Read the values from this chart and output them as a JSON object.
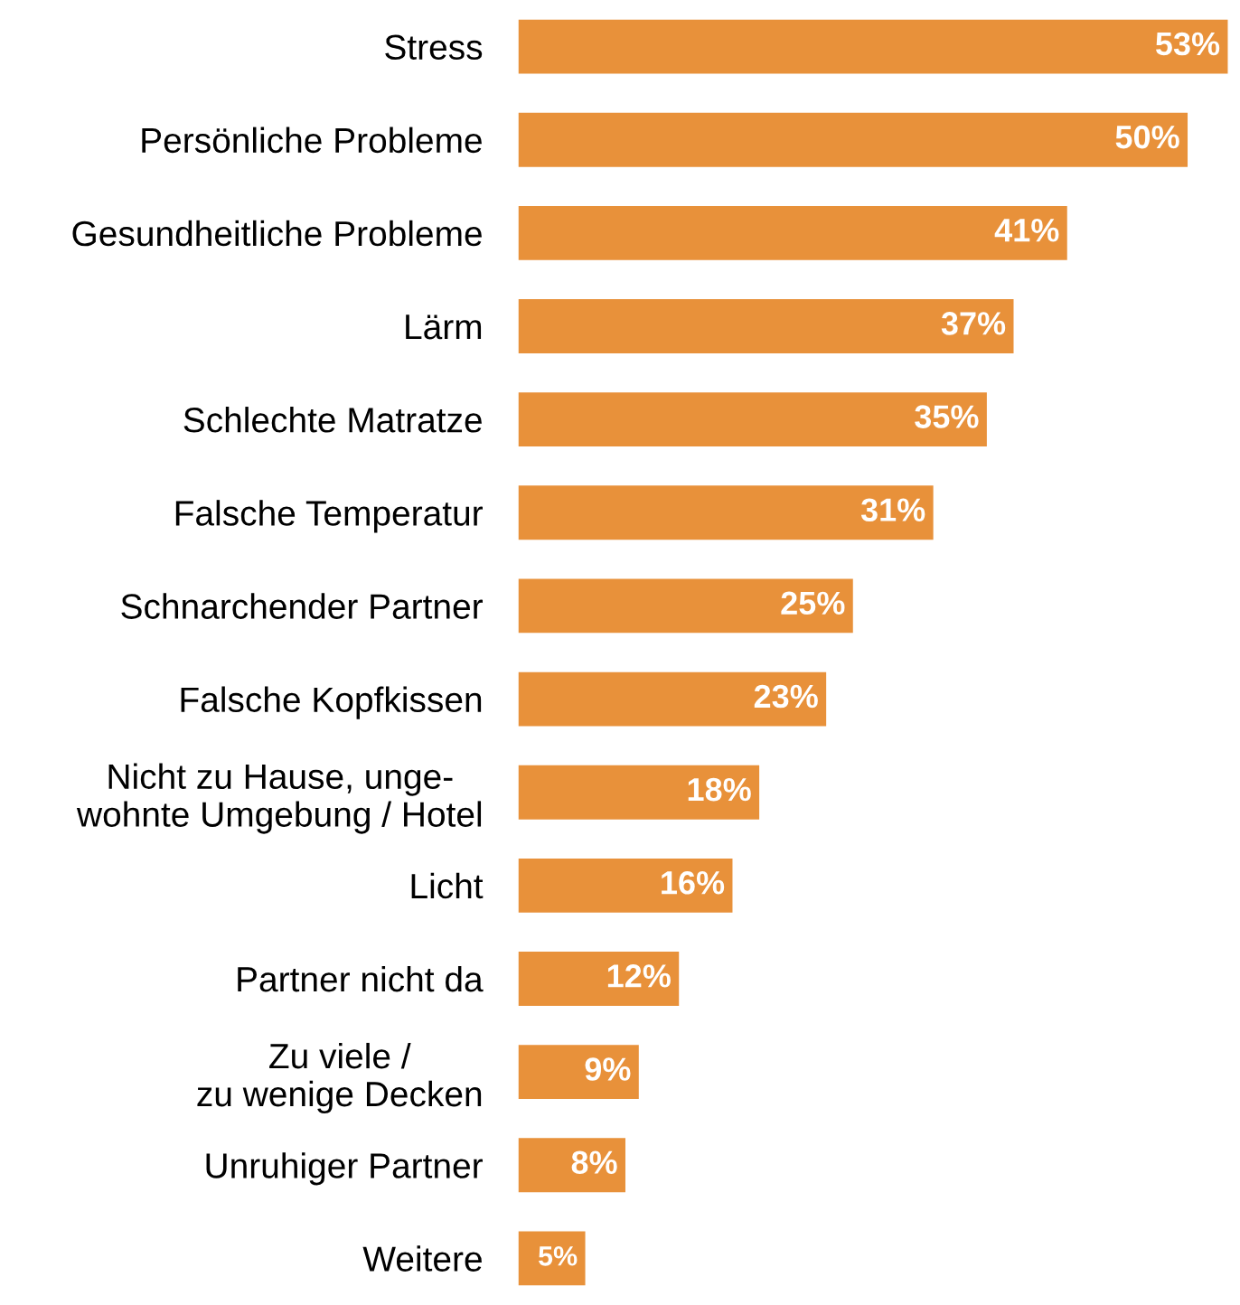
{
  "chart_data": {
    "type": "bar",
    "orientation": "horizontal",
    "categories": [
      "Stress",
      "Persönliche Probleme",
      "Gesundheitliche Probleme",
      "Lärm",
      "Schlechte Matratze",
      "Falsche Temperatur",
      "Schnarchender Partner",
      "Falsche Kopfkissen",
      "Nicht zu Hause, unge-\nwohnte Umgebung / Hotel",
      "Licht",
      "Partner nicht da",
      "Zu viele /\nzu wenige Decken",
      "Unruhiger Partner",
      "Weitere"
    ],
    "values": [
      53,
      50,
      41,
      37,
      35,
      31,
      25,
      23,
      18,
      16,
      12,
      9,
      8,
      5
    ],
    "value_labels": [
      "53%",
      "50%",
      "41%",
      "37%",
      "35%",
      "31%",
      "25%",
      "23%",
      "18%",
      "16%",
      "12%",
      "9%",
      "8%",
      "5%"
    ],
    "color": "#e8913a",
    "grid": false,
    "legend": false
  }
}
